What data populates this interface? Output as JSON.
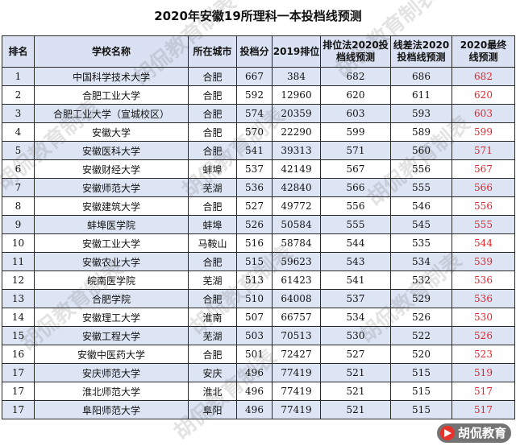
{
  "title": "2020年安徽19所理科一本投档线预测",
  "headers": {
    "rank": "排名",
    "school": "学校名称",
    "city": "所在城市",
    "score": "投档分",
    "rank2019": "2019排位",
    "method1": [
      "排位法2020投",
      "档线预测"
    ],
    "method2": [
      "线差法2020",
      "投档线预测"
    ],
    "final": [
      "2020最终",
      "线预测"
    ]
  },
  "rows": [
    {
      "rank": "1",
      "school": "中国科学技术大学",
      "city": "合肥",
      "score": "667",
      "rank2019": "384",
      "m1": "682",
      "m2": "686",
      "final": "682"
    },
    {
      "rank": "2",
      "school": "合肥工业大学",
      "city": "合肥",
      "score": "592",
      "rank2019": "12960",
      "m1": "620",
      "m2": "611",
      "final": "620"
    },
    {
      "rank": "3",
      "school": "合肥工业大学（宣城校区）",
      "city": "合肥",
      "score": "574",
      "rank2019": "20359",
      "m1": "603",
      "m2": "593",
      "final": "603"
    },
    {
      "rank": "4",
      "school": "安徽大学",
      "city": "合肥",
      "score": "570",
      "rank2019": "22290",
      "m1": "599",
      "m2": "589",
      "final": "599"
    },
    {
      "rank": "5",
      "school": "安徽医科大学",
      "city": "合肥",
      "score": "541",
      "rank2019": "39313",
      "m1": "571",
      "m2": "560",
      "final": "571"
    },
    {
      "rank": "6",
      "school": "安徽财经大学",
      "city": "蚌埠",
      "score": "537",
      "rank2019": "42149",
      "m1": "567",
      "m2": "556",
      "final": "567"
    },
    {
      "rank": "7",
      "school": "安徽师范大学",
      "city": "芜湖",
      "score": "536",
      "rank2019": "42840",
      "m1": "566",
      "m2": "555",
      "final": "566"
    },
    {
      "rank": "8",
      "school": "安徽建筑大学",
      "city": "合肥",
      "score": "527",
      "rank2019": "49772",
      "m1": "556",
      "m2": "546",
      "final": "556"
    },
    {
      "rank": "9",
      "school": "蚌埠医学院",
      "city": "蚌埠",
      "score": "526",
      "rank2019": "50584",
      "m1": "555",
      "m2": "545",
      "final": "555"
    },
    {
      "rank": "10",
      "school": "安徽工业大学",
      "city": "马鞍山",
      "score": "516",
      "rank2019": "58784",
      "m1": "544",
      "m2": "535",
      "final": "544"
    },
    {
      "rank": "11",
      "school": "安徽农业大学",
      "city": "合肥",
      "score": "515",
      "rank2019": "59623",
      "m1": "543",
      "m2": "534",
      "final": "539"
    },
    {
      "rank": "12",
      "school": "皖南医学院",
      "city": "芜湖",
      "score": "513",
      "rank2019": "61423",
      "m1": "541",
      "m2": "532",
      "final": "536"
    },
    {
      "rank": "13",
      "school": "合肥学院",
      "city": "合肥",
      "score": "510",
      "rank2019": "64008",
      "m1": "537",
      "m2": "529",
      "final": "536"
    },
    {
      "rank": "14",
      "school": "安徽理工大学",
      "city": "淮南",
      "score": "507",
      "rank2019": "66757",
      "m1": "534",
      "m2": "526",
      "final": "530"
    },
    {
      "rank": "15",
      "school": "安徽工程大学",
      "city": "芜湖",
      "score": "503",
      "rank2019": "70513",
      "m1": "530",
      "m2": "522",
      "final": "526"
    },
    {
      "rank": "16",
      "school": "安徽中医药大学",
      "city": "合肥",
      "score": "501",
      "rank2019": "72427",
      "m1": "527",
      "m2": "520",
      "final": "523"
    },
    {
      "rank": "17",
      "school": "安庆师范大学",
      "city": "安庆",
      "score": "496",
      "rank2019": "77419",
      "m1": "521",
      "m2": "515",
      "final": "519"
    },
    {
      "rank": "17",
      "school": "淮北师范大学",
      "city": "淮北",
      "score": "496",
      "rank2019": "77419",
      "m1": "521",
      "m2": "515",
      "final": "517"
    },
    {
      "rank": "17",
      "school": "阜阳师范大学",
      "city": "阜阳",
      "score": "496",
      "rank2019": "77419",
      "m1": "521",
      "m2": "515",
      "final": "517"
    }
  ],
  "watermark": "胡侃教育制表",
  "brand": "胡侃教育",
  "colors": {
    "header_bg": "#d9e1f2",
    "stripe": "#dde5f4",
    "prediction": "#e3242b"
  }
}
